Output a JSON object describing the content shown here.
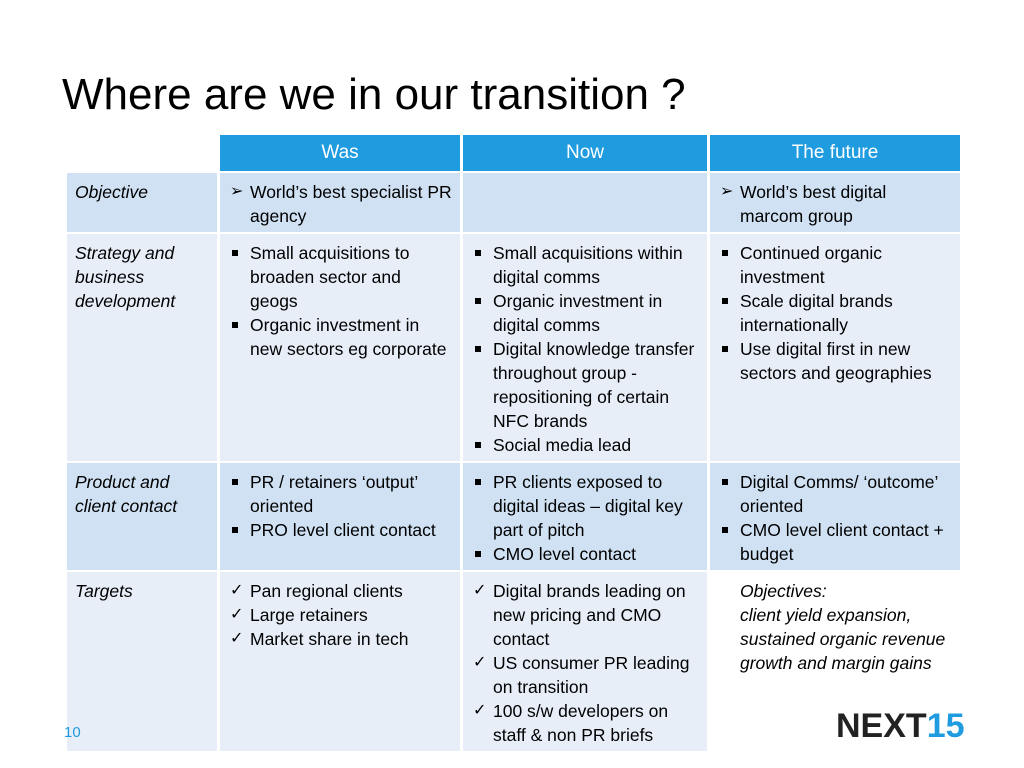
{
  "title": "Where are we in our transition ?",
  "columns": [
    "Was",
    "Now",
    "The future"
  ],
  "rows": [
    {
      "label": "Objective",
      "was": {
        "marker": "arrow",
        "items": [
          "World’s best specialist PR agency"
        ]
      },
      "now": {
        "marker": "none",
        "items": []
      },
      "future": {
        "marker": "arrow",
        "items": [
          "World’s best digital marcom group"
        ]
      }
    },
    {
      "label": "Strategy and business development",
      "was": {
        "marker": "square",
        "items": [
          "Small acquisitions to broaden sector and geogs",
          "Organic investment in new sectors eg corporate"
        ]
      },
      "now": {
        "marker": "square",
        "items": [
          "Small acquisitions within digital comms",
          "Organic investment in digital comms",
          "Digital knowledge transfer throughout group - repositioning of certain NFC brands",
          "Social media lead"
        ]
      },
      "future": {
        "marker": "square",
        "items": [
          "Continued organic investment",
          "Scale digital brands internationally",
          "Use digital first in new sectors and geographies"
        ]
      }
    },
    {
      "label": "Product and client contact",
      "was": {
        "marker": "square",
        "items": [
          "PR / retainers ‘output’ oriented",
          "PRO level client contact"
        ]
      },
      "now": {
        "marker": "square",
        "items": [
          "PR clients exposed  to digital ideas – digital key part of pitch",
          "CMO level contact"
        ]
      },
      "future": {
        "marker": "square",
        "items": [
          "Digital Comms/ ‘outcome’ oriented",
          "CMO level client contact + budget"
        ]
      }
    },
    {
      "label": "Targets",
      "was": {
        "marker": "check",
        "items": [
          "Pan regional clients",
          "Large retainers",
          "Market share in tech"
        ]
      },
      "now": {
        "marker": "check",
        "items": [
          "Digital brands leading on new pricing and CMO contact",
          "US consumer PR leading on transition",
          "100 s/w developers on staff & non PR briefs"
        ]
      },
      "future": {
        "marker": "note",
        "items": [
          "Objectives:",
          "client yield expansion, sustained organic revenue growth and margin gains"
        ]
      }
    }
  ],
  "page_number": "10",
  "logo": {
    "word": "NEXT",
    "num": "15"
  },
  "colors": {
    "header": "#1f9be0",
    "row_dark": "#cfe1f3",
    "row_light": "#e7eef8"
  }
}
